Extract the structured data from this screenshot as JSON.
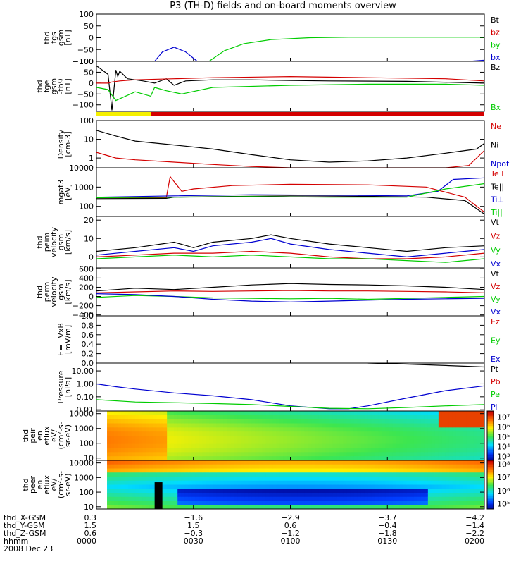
{
  "figure": {
    "title": "P3 (TH-D) fields and on-board moments overview",
    "date": "2008 Dec 23"
  },
  "colors": {
    "black": "#000000",
    "red": "#d40000",
    "green": "#00cc00",
    "blue": "#0000d0",
    "yellow": "#f5f000"
  },
  "chart_data": [
    {
      "type": "line",
      "ylabel": [
        "thd",
        "fgs",
        "gsm",
        "[nT]"
      ],
      "ylim": [
        -100,
        100
      ],
      "yticks": [
        "100",
        "50",
        "0",
        "−50",
        "−100"
      ],
      "legend": [
        {
          "name": "Bt",
          "color": "#000000"
        },
        {
          "name": "bz",
          "color": "#d40000"
        },
        {
          "name": "by",
          "color": "#00cc00"
        },
        {
          "name": "bx",
          "color": "#0000d0"
        }
      ],
      "series": [
        {
          "name": "by",
          "color": "#00cc00",
          "x": [
            0.29,
            0.33,
            0.38,
            0.45,
            0.55,
            0.65,
            0.8,
            1.0
          ],
          "y": [
            -100,
            -55,
            -25,
            -8,
            0,
            2,
            2,
            2
          ]
        },
        {
          "name": "bx",
          "color": "#0000d0",
          "x": [
            0.15,
            0.17,
            0.2,
            0.23,
            0.26
          ],
          "y": [
            -100,
            -60,
            -40,
            -60,
            -100
          ]
        },
        {
          "name": "bx",
          "color": "#0000d0",
          "x": [
            0.96,
            1.0
          ],
          "y": [
            -100,
            -95
          ]
        }
      ]
    },
    {
      "type": "line",
      "ylabel": [
        "thd",
        "fge",
        "gsm",
        "-tb9",
        "[nT]"
      ],
      "ylim": [
        -130,
        100
      ],
      "yticks": [
        "100",
        "50",
        "0",
        "−50",
        "−100"
      ],
      "legend": [
        {
          "name": "Bz",
          "color": "#000000"
        },
        {
          "name": "Bx",
          "color": "#00cc00"
        }
      ],
      "series": [
        {
          "name": "Bt",
          "color": "#000000",
          "x": [
            0.0,
            0.03,
            0.04,
            0.05,
            0.055,
            0.06,
            0.08,
            0.12,
            0.15,
            0.18,
            0.2,
            0.23,
            0.3,
            0.4,
            0.5,
            0.6,
            0.8,
            1.0
          ],
          "y": [
            80,
            40,
            -125,
            60,
            30,
            55,
            20,
            10,
            0,
            20,
            -10,
            10,
            15,
            15,
            12,
            10,
            8,
            0
          ]
        },
        {
          "name": "Bz",
          "color": "#d40000",
          "x": [
            0.0,
            0.03,
            0.04,
            0.06,
            0.1,
            0.2,
            0.3,
            0.5,
            0.7,
            0.9,
            1.0
          ],
          "y": [
            0,
            0,
            5,
            10,
            15,
            20,
            25,
            30,
            25,
            20,
            10
          ]
        },
        {
          "name": "Bx",
          "color": "#00cc00",
          "x": [
            0.0,
            0.03,
            0.05,
            0.1,
            0.14,
            0.15,
            0.18,
            0.22,
            0.3,
            0.5,
            0.7,
            0.9,
            1.0
          ],
          "y": [
            -20,
            -30,
            -80,
            -40,
            -60,
            -20,
            -35,
            -50,
            -20,
            -10,
            -5,
            -5,
            -10
          ]
        }
      ]
    },
    {
      "type": "line",
      "ylabel": [
        "Density",
        "[cm-3]"
      ],
      "yscale": "log",
      "ylim": [
        0.3,
        100
      ],
      "yticks": [
        "100",
        "10",
        "1"
      ],
      "legend": [
        {
          "name": "Ne",
          "color": "#d40000"
        },
        {
          "name": "Ni",
          "color": "#000000"
        },
        {
          "name": "Npot",
          "color": "#0000d0"
        }
      ],
      "series": [
        {
          "name": "Ni",
          "color": "#000000",
          "x": [
            0.0,
            0.05,
            0.1,
            0.2,
            0.3,
            0.4,
            0.5,
            0.6,
            0.7,
            0.8,
            0.9,
            0.98,
            1.0
          ],
          "y": [
            30,
            15,
            8,
            5,
            3,
            1.5,
            0.8,
            0.6,
            0.7,
            1.0,
            1.8,
            3.0,
            6.0
          ]
        },
        {
          "name": "Ne",
          "color": "#d40000",
          "x": [
            0.0,
            0.05,
            0.1,
            0.2,
            0.3,
            0.4,
            0.5,
            0.6,
            0.7,
            0.8,
            0.9,
            0.96,
            1.0
          ],
          "y": [
            2.0,
            1.0,
            0.8,
            0.6,
            0.45,
            0.35,
            0.3,
            0.3,
            0.3,
            0.3,
            0.3,
            0.4,
            2.5
          ]
        }
      ]
    },
    {
      "type": "line",
      "ylabel": [
        "mgat3",
        "[eV]"
      ],
      "yscale": "log",
      "ylim": [
        30,
        10000
      ],
      "yticks": [
        "10000",
        "1000",
        "100"
      ],
      "legend": [
        {
          "name": "Te⊥",
          "color": "#d40000"
        },
        {
          "name": "Te||",
          "color": "#000000"
        },
        {
          "name": "Ti⊥",
          "color": "#0000d0"
        },
        {
          "name": "Ti||",
          "color": "#00cc00"
        }
      ],
      "series": [
        {
          "name": "Te⊥",
          "color": "#d40000",
          "x": [
            0.0,
            0.18,
            0.19,
            0.22,
            0.25,
            0.35,
            0.5,
            0.7,
            0.85,
            0.95,
            1.0
          ],
          "y": [
            280,
            280,
            3500,
            600,
            800,
            1200,
            1400,
            1300,
            1000,
            300,
            50
          ]
        },
        {
          "name": "Te||",
          "color": "#000000",
          "x": [
            0.0,
            0.18,
            0.2,
            0.3,
            0.5,
            0.7,
            0.85,
            0.95,
            1.0
          ],
          "y": [
            250,
            260,
            300,
            320,
            350,
            330,
            300,
            200,
            40
          ]
        },
        {
          "name": "Ti⊥",
          "color": "#0000d0",
          "x": [
            0.0,
            0.2,
            0.4,
            0.6,
            0.8,
            0.88,
            0.92,
            1.0
          ],
          "y": [
            300,
            350,
            400,
            380,
            350,
            600,
            2500,
            3000
          ]
        },
        {
          "name": "Ti||",
          "color": "#00cc00",
          "x": [
            0.0,
            0.2,
            0.4,
            0.6,
            0.8,
            0.9,
            1.0
          ],
          "y": [
            280,
            300,
            320,
            300,
            300,
            800,
            1500
          ]
        }
      ]
    },
    {
      "type": "line",
      "ylabel": [
        "thd",
        "peim",
        "velocity",
        "gsm",
        "[km/s]"
      ],
      "ylim": [
        -6,
        22
      ],
      "yticks": [
        "20",
        "10",
        "0"
      ],
      "legend": [
        {
          "name": "Vt",
          "color": "#000000"
        },
        {
          "name": "Vz",
          "color": "#d40000"
        },
        {
          "name": "Vy",
          "color": "#00cc00"
        },
        {
          "name": "Vx",
          "color": "#0000d0"
        }
      ],
      "series": [
        {
          "name": "Vt",
          "color": "#000000",
          "x": [
            0.0,
            0.1,
            0.2,
            0.25,
            0.3,
            0.4,
            0.45,
            0.5,
            0.6,
            0.7,
            0.8,
            0.9,
            1.0
          ],
          "y": [
            3,
            5,
            8,
            5,
            8,
            10,
            12,
            10,
            7,
            5,
            3,
            5,
            6
          ]
        },
        {
          "name": "Vx",
          "color": "#0000d0",
          "x": [
            0.0,
            0.1,
            0.2,
            0.25,
            0.3,
            0.4,
            0.45,
            0.5,
            0.6,
            0.7,
            0.8,
            0.9,
            1.0
          ],
          "y": [
            1,
            3,
            5,
            3,
            6,
            8,
            10,
            7,
            4,
            2,
            0,
            2,
            4
          ]
        },
        {
          "name": "Vz",
          "color": "#d40000",
          "x": [
            0.0,
            0.1,
            0.2,
            0.3,
            0.4,
            0.5,
            0.6,
            0.7,
            0.8,
            0.9,
            1.0
          ],
          "y": [
            0,
            1,
            2,
            2,
            3,
            2,
            0,
            -1,
            -1,
            0,
            2
          ]
        },
        {
          "name": "Vy",
          "color": "#00cc00",
          "x": [
            0.0,
            0.1,
            0.2,
            0.3,
            0.4,
            0.5,
            0.6,
            0.7,
            0.8,
            0.9,
            1.0
          ],
          "y": [
            -1,
            0,
            1,
            0,
            1,
            0,
            -1,
            -1,
            -2,
            -3,
            -1
          ]
        }
      ]
    },
    {
      "type": "line",
      "ylabel": [
        "thd",
        "perm",
        "velocity",
        "gsm",
        "[km/s]"
      ],
      "ylim": [
        -420,
        620
      ],
      "yticks": [
        "600",
        "400",
        "200",
        "0",
        "−200",
        "−400"
      ],
      "legend": [
        {
          "name": "Vt",
          "color": "#000000"
        },
        {
          "name": "Vz",
          "color": "#d40000"
        },
        {
          "name": "Vy",
          "color": "#00cc00"
        },
        {
          "name": "Vx",
          "color": "#0000d0"
        }
      ],
      "series": [
        {
          "name": "Vt",
          "color": "#000000",
          "x": [
            0.0,
            0.1,
            0.2,
            0.3,
            0.4,
            0.5,
            0.6,
            0.7,
            0.8,
            0.9,
            1.0
          ],
          "y": [
            120,
            180,
            150,
            200,
            250,
            280,
            260,
            250,
            230,
            200,
            150
          ]
        },
        {
          "name": "Vz",
          "color": "#d40000",
          "x": [
            0.0,
            0.1,
            0.2,
            0.3,
            0.4,
            0.5,
            0.6,
            0.7,
            0.8,
            0.9,
            1.0
          ],
          "y": [
            80,
            100,
            120,
            110,
            120,
            130,
            120,
            120,
            110,
            100,
            80
          ]
        },
        {
          "name": "Vy",
          "color": "#00cc00",
          "x": [
            0.0,
            0.1,
            0.2,
            0.3,
            0.4,
            0.5,
            0.6,
            0.7,
            0.8,
            0.9,
            1.0
          ],
          "y": [
            -20,
            20,
            0,
            -30,
            -40,
            -50,
            -40,
            -60,
            -40,
            -20,
            0
          ]
        },
        {
          "name": "Vx",
          "color": "#0000d0",
          "x": [
            0.0,
            0.1,
            0.2,
            0.3,
            0.4,
            0.5,
            0.6,
            0.7,
            0.8,
            0.9,
            1.0
          ],
          "y": [
            60,
            40,
            0,
            -60,
            -100,
            -120,
            -100,
            -80,
            -60,
            -50,
            -40
          ]
        }
      ]
    },
    {
      "type": "line",
      "ylabel": [
        "E=−VxB",
        "[mV/m]"
      ],
      "ylim": [
        0,
        1
      ],
      "yticks": [
        "1.0",
        "0.8",
        "0.6",
        "0.4",
        "0.2",
        "0.0"
      ],
      "legend": [
        {
          "name": "Ez",
          "color": "#d40000"
        },
        {
          "name": "Ey",
          "color": "#00cc00"
        },
        {
          "name": "Ex",
          "color": "#0000d0"
        }
      ],
      "series": []
    },
    {
      "type": "line",
      "ylabel": [
        "Pressure",
        "[nPa]"
      ],
      "yscale": "log",
      "ylim": [
        0.008,
        40
      ],
      "yticks": [
        "10.00",
        "1.00",
        "0.10",
        "0.01"
      ],
      "legend": [
        {
          "name": "Pt",
          "color": "#000000"
        },
        {
          "name": "Pb",
          "color": "#d40000"
        },
        {
          "name": "Pe",
          "color": "#00cc00"
        },
        {
          "name": "Pi",
          "color": "#0000d0"
        }
      ],
      "series": [
        {
          "name": "Pt",
          "color": "#000000",
          "x": [
            0.7,
            0.8,
            0.9,
            1.0
          ],
          "y": [
            40,
            33,
            26,
            20
          ]
        },
        {
          "name": "Pi",
          "color": "#0000d0",
          "x": [
            0.0,
            0.05,
            0.1,
            0.2,
            0.3,
            0.4,
            0.5,
            0.6,
            0.65,
            0.7,
            0.8,
            0.9,
            1.0
          ],
          "y": [
            1.0,
            0.6,
            0.4,
            0.2,
            0.12,
            0.06,
            0.02,
            0.012,
            0.012,
            0.02,
            0.08,
            0.3,
            0.7
          ]
        },
        {
          "name": "Pe",
          "color": "#00cc00",
          "x": [
            0.0,
            0.1,
            0.2,
            0.3,
            0.4,
            0.5,
            0.6,
            0.7,
            0.8,
            0.9,
            1.0
          ],
          "y": [
            0.06,
            0.04,
            0.035,
            0.03,
            0.025,
            0.018,
            0.013,
            0.012,
            0.015,
            0.02,
            0.025
          ]
        }
      ]
    },
    {
      "type": "heatmap",
      "ylabel": [
        "thd",
        "peir",
        "en",
        "eflux",
        "eV/",
        "(cm²-s-",
        "sr-eV)"
      ],
      "yscale": "log",
      "ylim": [
        7,
        15000
      ],
      "yticks": [
        "10000",
        "1000",
        "100",
        "10"
      ],
      "colorbar": {
        "ticks": [
          "10⁷",
          "10⁶",
          "10⁵",
          "10⁴",
          "10³"
        ],
        "range_exp": [
          2.6,
          7.6
        ]
      }
    },
    {
      "type": "heatmap",
      "ylabel": [
        "thd",
        "peer",
        "en",
        "eflux",
        "eV/",
        "(cm²-s-",
        "sr-eV)"
      ],
      "yscale": "log",
      "ylim": [
        7,
        15000
      ],
      "yticks": [
        "10000",
        "1000",
        "100",
        "10"
      ],
      "colorbar": {
        "ticks": [
          "10⁸",
          "10⁷",
          "10⁶",
          "10⁵"
        ],
        "range_exp": [
          4.6,
          8.3
        ]
      }
    }
  ],
  "footer": {
    "rows": [
      {
        "label": "thd_X-GSM",
        "values": [
          "0.3",
          "−1.6",
          "−2.9",
          "−3.7",
          "−4.2"
        ]
      },
      {
        "label": "thd_Y-GSM",
        "values": [
          "1.5",
          "1.5",
          "0.6",
          "−0.4",
          "−1.4"
        ]
      },
      {
        "label": "thd_Z-GSM",
        "values": [
          "0.6",
          "−0.3",
          "−1.2",
          "−1.8",
          "−2.2"
        ]
      },
      {
        "label": "hhmm",
        "values": [
          "0000",
          "0030",
          "0100",
          "0130",
          "0200"
        ]
      }
    ]
  }
}
